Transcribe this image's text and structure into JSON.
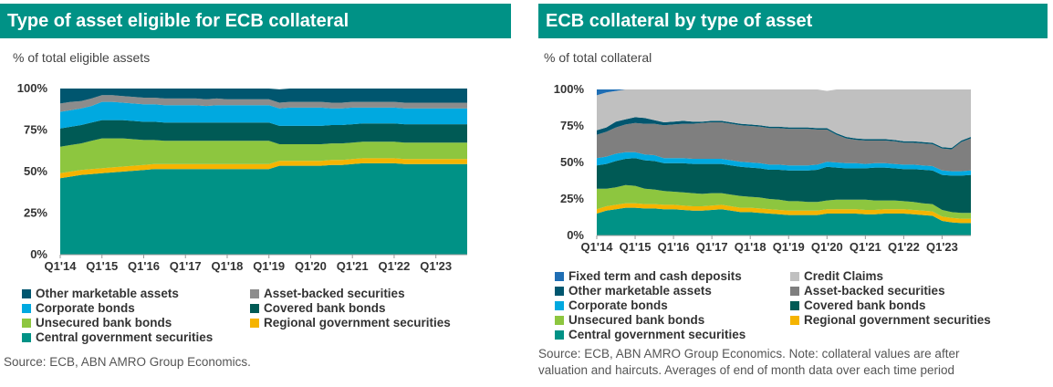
{
  "chart_data": [
    {
      "type": "area",
      "stacked": true,
      "title": "Type of asset eligible for ECB collateral",
      "subtitle": "% of total eligible assets",
      "ylim": [
        0,
        100
      ],
      "yticks": [
        "0%",
        "25%",
        "50%",
        "75%",
        "100%"
      ],
      "xticks": [
        "Q1'14",
        "Q1'15",
        "Q1'16",
        "Q1'17",
        "Q1'18",
        "Q1'19",
        "Q1'20",
        "Q1'21",
        "Q1'22",
        "Q1'23"
      ],
      "x": [
        "Q1'14",
        "Q2'14",
        "Q3'14",
        "Q4'14",
        "Q1'15",
        "Q2'15",
        "Q3'15",
        "Q4'15",
        "Q1'16",
        "Q2'16",
        "Q3'16",
        "Q4'16",
        "Q1'17",
        "Q2'17",
        "Q3'17",
        "Q4'17",
        "Q1'18",
        "Q2'18",
        "Q3'18",
        "Q4'18",
        "Q1'19",
        "Q2'19",
        "Q3'19",
        "Q4'19",
        "Q1'20",
        "Q2'20",
        "Q3'20",
        "Q4'20",
        "Q1'21",
        "Q2'21",
        "Q3'21",
        "Q4'21",
        "Q1'22",
        "Q2'22",
        "Q3'22",
        "Q4'22",
        "Q1'23",
        "Q2'23",
        "Q3'23",
        "Q4'23"
      ],
      "series": [
        {
          "name": "Central government securities",
          "color": "#009286",
          "values": [
            46,
            47,
            48,
            48.5,
            49,
            49.5,
            50,
            50.5,
            51,
            51.5,
            51.5,
            51.5,
            51.5,
            51.5,
            51.5,
            51.5,
            51.5,
            51.5,
            51.5,
            51.5,
            51.5,
            53.5,
            53.5,
            53.5,
            53.5,
            53.5,
            54,
            54,
            54.5,
            55,
            55,
            55,
            55,
            54.5,
            54.5,
            54.5,
            54.5,
            54.5,
            54.5,
            54.5
          ]
        },
        {
          "name": "Regional government securities",
          "color": "#f5b400",
          "values": [
            3,
            3,
            3,
            3,
            3,
            3,
            3,
            3,
            3,
            3,
            3,
            3,
            3,
            3,
            3,
            3,
            3,
            3,
            3,
            3,
            3,
            3,
            3,
            3,
            3,
            3,
            3,
            3,
            3,
            3,
            3,
            3,
            3,
            3,
            3,
            3,
            3,
            3,
            3,
            3
          ]
        },
        {
          "name": "Unsecured bank bonds",
          "color": "#8dc63f",
          "values": [
            16,
            16,
            16,
            17,
            18,
            17.5,
            17,
            16,
            15,
            14.5,
            14,
            14,
            14,
            14,
            14,
            14,
            14,
            14,
            14,
            14,
            14,
            10,
            10,
            10,
            10,
            10,
            10,
            10,
            10,
            10,
            10,
            10,
            10,
            10,
            10,
            10,
            10,
            10,
            10,
            10
          ]
        },
        {
          "name": "Covered bank bonds",
          "color": "#005a55",
          "values": [
            11,
            11,
            11,
            11,
            11,
            11,
            11,
            11,
            11,
            11,
            11,
            11,
            11,
            11,
            11,
            11,
            11,
            11,
            11,
            11,
            11,
            11,
            11,
            11,
            11,
            11,
            11,
            11,
            11,
            11,
            11,
            11,
            11,
            11,
            11,
            11,
            11,
            11,
            11,
            11
          ]
        },
        {
          "name": "Corporate bonds",
          "color": "#00a9e0",
          "values": [
            10,
            10,
            10,
            10,
            11,
            11,
            10.5,
            10.5,
            10.5,
            10.5,
            10.5,
            10.5,
            10.5,
            10.5,
            10,
            10.5,
            10.5,
            10.5,
            10.5,
            10.5,
            10.5,
            10.5,
            11,
            11,
            11,
            11,
            10,
            10,
            10,
            9.5,
            9.5,
            9.5,
            9.5,
            9.5,
            9.5,
            9.5,
            9.5,
            9.5,
            9.5,
            9.5
          ]
        },
        {
          "name": "Asset-backed securities",
          "color": "#8c8c8c",
          "values": [
            5,
            5,
            4.5,
            4.5,
            4,
            4,
            4,
            4,
            4,
            4,
            4,
            4,
            4,
            4,
            4,
            4,
            3.5,
            3.5,
            3.5,
            3.5,
            3.5,
            3.5,
            3.5,
            3.5,
            3.5,
            3.5,
            3.5,
            3.5,
            3.5,
            3.5,
            3.5,
            3.5,
            3.5,
            3.5,
            3.5,
            3.5,
            3.5,
            3.5,
            3.5,
            3.5
          ]
        },
        {
          "name": "Other marketable assets",
          "color": "#00566f",
          "values": [
            9,
            8,
            7.5,
            6,
            4,
            4,
            4.5,
            5,
            5.5,
            5.5,
            6,
            6,
            6,
            6,
            6.5,
            6,
            6.5,
            6.5,
            6.5,
            6.5,
            6.5,
            8,
            8,
            8,
            8,
            8,
            8.5,
            8.5,
            8,
            8,
            8,
            8,
            8,
            8.5,
            8.5,
            8.5,
            8.5,
            8.5,
            8.5,
            8.5
          ]
        }
      ],
      "legend": [
        "Other marketable assets",
        "Asset-backed securities",
        "Corporate bonds",
        "Covered bank bonds",
        "Unsecured bank bonds",
        "Regional government securities",
        "Central government securities"
      ],
      "source": "Source: ECB, ABN AMRO Group Economics."
    },
    {
      "type": "area",
      "stacked": true,
      "title": "ECB collateral by type of asset",
      "subtitle": "% of total collateral",
      "ylim": [
        0,
        100
      ],
      "yticks": [
        "0%",
        "25%",
        "50%",
        "75%",
        "100%"
      ],
      "xticks": [
        "Q1'14",
        "Q1'15",
        "Q1'16",
        "Q1'17",
        "Q1'18",
        "Q1'19",
        "Q1'20",
        "Q1'21",
        "Q1'22",
        "Q1'23"
      ],
      "x": [
        "Q1'14",
        "Q2'14",
        "Q3'14",
        "Q4'14",
        "Q1'15",
        "Q2'15",
        "Q3'15",
        "Q4'15",
        "Q1'16",
        "Q2'16",
        "Q3'16",
        "Q4'16",
        "Q1'17",
        "Q2'17",
        "Q3'17",
        "Q4'17",
        "Q1'18",
        "Q2'18",
        "Q3'18",
        "Q4'18",
        "Q1'19",
        "Q2'19",
        "Q3'19",
        "Q4'19",
        "Q1'20",
        "Q2'20",
        "Q3'20",
        "Q4'20",
        "Q1'21",
        "Q2'21",
        "Q3'21",
        "Q4'21",
        "Q1'22",
        "Q2'22",
        "Q3'22",
        "Q4'22",
        "Q1'23",
        "Q2'23",
        "Q3'23",
        "Q4'23"
      ],
      "series": [
        {
          "name": "Central government securities",
          "color": "#009286",
          "values": [
            15,
            17,
            18,
            19,
            19,
            18.5,
            18.5,
            18,
            18,
            17.5,
            17,
            17,
            17.5,
            18,
            17,
            16,
            16,
            15.5,
            15,
            14.5,
            14,
            14,
            14,
            14,
            15,
            15,
            15,
            15,
            14.5,
            14.5,
            15,
            15,
            15,
            14.5,
            14,
            13.5,
            10,
            9,
            8.5,
            8.5
          ]
        },
        {
          "name": "Regional government securities",
          "color": "#f5b400",
          "values": [
            3,
            3,
            3,
            3,
            3,
            3,
            3,
            3,
            3,
            3,
            3,
            3,
            3,
            3,
            3,
            3,
            3,
            3,
            3,
            3,
            3,
            3,
            3,
            3,
            3,
            3,
            3,
            3,
            3,
            3,
            3,
            3,
            3,
            3,
            3,
            3,
            3,
            3,
            3,
            3
          ]
        },
        {
          "name": "Unsecured bank bonds",
          "color": "#8dc63f",
          "values": [
            14,
            12,
            12,
            12.5,
            12,
            10.5,
            10,
            9.5,
            9,
            9,
            9,
            8.5,
            8.5,
            8,
            8,
            8,
            7.5,
            7.5,
            7,
            7,
            6.5,
            6.5,
            6,
            6,
            6,
            6.5,
            6.5,
            6.5,
            7,
            6.5,
            6,
            6,
            5.5,
            5.5,
            5,
            5,
            4.5,
            4,
            4,
            4
          ]
        },
        {
          "name": "Covered bank bonds",
          "color": "#005a55",
          "values": [
            16,
            17,
            18,
            18,
            19,
            19.5,
            19.5,
            19,
            19.5,
            20,
            20,
            20.5,
            20,
            20,
            20,
            20,
            20,
            20,
            20,
            20.5,
            21,
            21,
            21.5,
            22,
            23,
            22,
            21.5,
            21.5,
            21.5,
            22.5,
            22.5,
            22,
            22,
            22.5,
            23,
            23,
            24,
            25,
            25.5,
            26
          ]
        },
        {
          "name": "Corporate bonds",
          "color": "#00a9e0",
          "values": [
            5,
            5,
            5,
            4.5,
            4,
            4,
            4,
            3.5,
            3.5,
            3.5,
            3.5,
            3.5,
            3.5,
            3.5,
            3.5,
            3.5,
            3.5,
            3.5,
            3.5,
            3.5,
            3.5,
            3.5,
            3.5,
            3.5,
            3.5,
            3.5,
            3.5,
            3.5,
            3,
            3,
            3,
            3,
            3,
            3,
            3,
            3,
            3,
            3,
            3,
            3
          ]
        },
        {
          "name": "Asset-backed securities",
          "color": "#7f7f7f",
          "values": [
            16,
            17,
            18,
            19,
            20,
            21,
            21.5,
            22.5,
            23,
            23.5,
            24,
            24.5,
            25,
            25,
            25,
            25,
            25,
            25,
            25,
            25,
            25,
            25,
            25,
            24,
            22,
            19,
            17,
            16,
            16,
            15.5,
            15.5,
            15.5,
            15,
            15,
            15,
            15,
            15,
            15,
            20,
            22
          ]
        },
        {
          "name": "Other marketable assets",
          "color": "#00566f",
          "values": [
            3,
            3,
            4,
            3.5,
            4,
            4,
            2.5,
            2,
            2,
            2,
            1.5,
            1,
            1,
            1,
            1,
            1,
            1,
            1,
            1,
            1,
            1,
            1,
            1,
            1,
            1,
            1,
            1,
            1,
            1,
            1,
            1,
            1,
            1,
            1,
            1,
            1,
            1,
            1,
            1,
            1
          ]
        },
        {
          "name": "Credit Claims",
          "color": "#c0c0c0",
          "values": [
            24,
            24,
            21,
            20.5,
            19,
            19.5,
            21,
            22.5,
            22,
            21.5,
            22,
            22,
            21.5,
            21.5,
            22.5,
            23.5,
            24,
            24.5,
            25.5,
            25.5,
            26,
            26,
            26,
            26.5,
            25.5,
            30,
            32.5,
            33.5,
            34,
            34,
            34,
            34.5,
            35.5,
            35.5,
            36,
            36.5,
            39.5,
            40,
            35,
            32.5
          ]
        },
        {
          "name": "Fixed term and cash deposits",
          "color": "#1f6eb4",
          "values": [
            4,
            2,
            1,
            0,
            0,
            0,
            0,
            0,
            0,
            0,
            0,
            0,
            0,
            0,
            0,
            0,
            0,
            0,
            0,
            0,
            0,
            0,
            0,
            0,
            0,
            0,
            0,
            0,
            0,
            0,
            0,
            0,
            0,
            0,
            0,
            0,
            0,
            0,
            0,
            0
          ]
        }
      ],
      "legend": [
        "Fixed term and cash deposits",
        "Credit Claims",
        "Other marketable assets",
        "Asset-backed securities",
        "Corporate bonds",
        "Covered bank bonds",
        "Unsecured bank bonds",
        "Regional government securities",
        "Central government securities"
      ],
      "source_lines": [
        "Source: ECB, ABN AMRO Group Economics. Note: collateral values are after",
        "valuation and haircuts. Averages of end of month data over each time period"
      ]
    }
  ]
}
